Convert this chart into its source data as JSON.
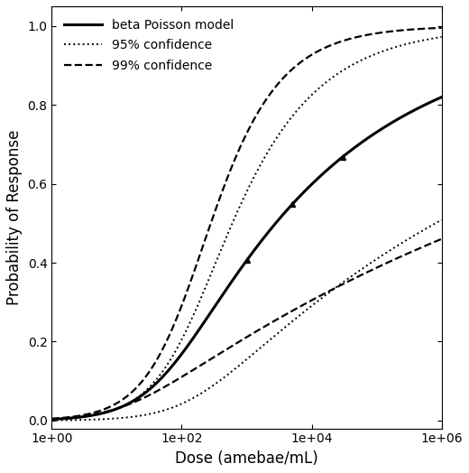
{
  "title": "",
  "xlabel": "Dose (amebae/mL)",
  "ylabel": "Probability of Response",
  "xlim_log": [
    0,
    6
  ],
  "ylim": [
    -0.02,
    1.05
  ],
  "yticks": [
    0.0,
    0.2,
    0.4,
    0.6,
    0.8,
    1.0
  ],
  "xtick_vals": [
    1,
    100,
    10000,
    1000000
  ],
  "background": "#ffffff",
  "line_color": "#000000",
  "beta_poisson": {
    "alpha": 0.174,
    "N50": 2780
  },
  "data_points_on_curve": [
    {
      "dose": 1000,
      "y_frac": null
    },
    {
      "dose": 5000,
      "y_frac": null
    },
    {
      "dose": 30000,
      "y_frac": null
    }
  ],
  "legend": [
    {
      "label": "beta Poisson model",
      "linestyle": "solid",
      "linewidth": 2.2
    },
    {
      "label": "95% confidence",
      "linestyle": "dotted",
      "linewidth": 1.4
    },
    {
      "label": "99% confidence",
      "linestyle": "dashed",
      "linewidth": 1.6
    }
  ],
  "ci95_upper": {
    "alpha": 0.4,
    "N50": 600
  },
  "ci95_lower": {
    "alpha": 0.08,
    "N50": 800000
  },
  "ci99_upper": {
    "alpha": 0.6,
    "N50": 280
  },
  "ci99_lower": {
    "alpha": 0.055,
    "N50": 4000000
  }
}
